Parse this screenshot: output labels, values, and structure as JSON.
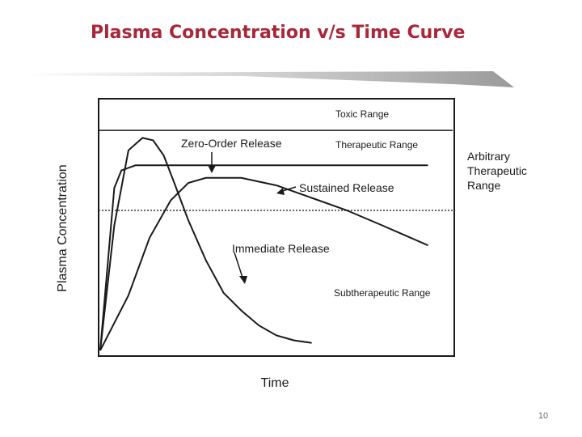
{
  "slide": {
    "title": "Plasma Concentration v/s Time Curve",
    "number": "10"
  },
  "colors": {
    "title": "#a8283a",
    "ink": "#1a1a1a"
  },
  "chart_data": {
    "type": "line",
    "xlabel": "Time",
    "ylabel": "Plasma Concentration",
    "xlim": [
      0,
      100
    ],
    "ylim": [
      0,
      100
    ],
    "grid": false,
    "reference_lines": [
      {
        "name": "Toxic Threshold",
        "y": 88
      },
      {
        "name": "Therapeutic Threshold",
        "y": 56
      }
    ],
    "regions": {
      "toxic": "Toxic Range",
      "therapeutic": "Therapeutic Range",
      "subtherapeutic": "Subtherapeutic Range",
      "arbitrary": [
        "Arbitrary",
        "Therapeutic",
        "Range"
      ]
    },
    "series": [
      {
        "name": "Immediate Release",
        "x": [
          0,
          4,
          8,
          12,
          15,
          18,
          21,
          25,
          30,
          35,
          40,
          45,
          50,
          55,
          60
        ],
        "y": [
          0,
          50,
          80,
          85,
          84,
          78,
          67,
          52,
          36,
          23,
          16,
          10,
          6,
          4,
          3
        ]
      },
      {
        "name": "Zero-Order Release",
        "x": [
          0,
          4,
          6,
          8,
          10,
          15,
          20,
          30,
          50,
          70,
          80,
          93
        ],
        "y": [
          0,
          65,
          72,
          73,
          74,
          74,
          74,
          74,
          74,
          74,
          74,
          74
        ]
      },
      {
        "name": "Sustained Release",
        "x": [
          0,
          8,
          14,
          20,
          25,
          30,
          35,
          40,
          50,
          60,
          70,
          80,
          93
        ],
        "y": [
          0,
          22,
          45,
          60,
          67,
          69,
          69,
          69,
          66,
          61,
          56,
          50,
          42
        ]
      }
    ],
    "annotations": [
      {
        "text": "Zero-Order Release",
        "target": "Zero-Order Release"
      },
      {
        "text": "Sustained Release",
        "target": "Sustained Release"
      },
      {
        "text": "Immediate Release",
        "target": "Immediate Release"
      }
    ]
  }
}
